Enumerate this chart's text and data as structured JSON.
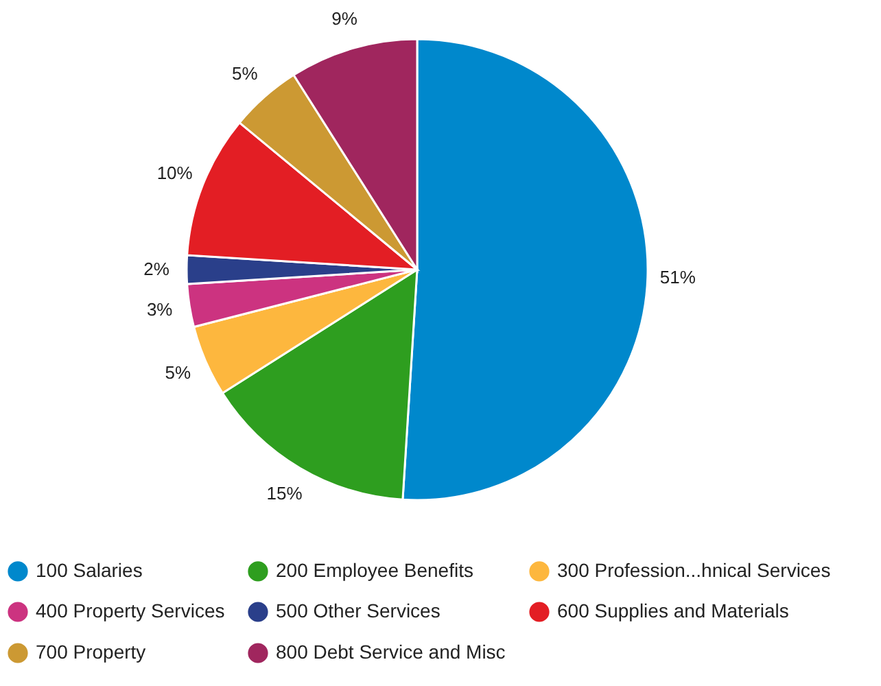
{
  "chart_data": {
    "type": "pie",
    "categories": [
      "100 Salaries",
      "200 Employee Benefits",
      "300 Profession...hnical Services",
      "400 Property Services",
      "500 Other Services",
      "600 Supplies and Materials",
      "700 Property",
      "800 Debt Service and Misc"
    ],
    "values": [
      51,
      15,
      5,
      3,
      2,
      10,
      5,
      9
    ],
    "value_labels": [
      "51%",
      "15%",
      "5%",
      "3%",
      "2%",
      "10%",
      "5%",
      "9%"
    ],
    "colors": [
      "#0088cc",
      "#2e9e1f",
      "#fdb73e",
      "#cc3380",
      "#2a3f8a",
      "#e31e24",
      "#cc9933",
      "#a0265e"
    ],
    "legend": "bottom"
  }
}
